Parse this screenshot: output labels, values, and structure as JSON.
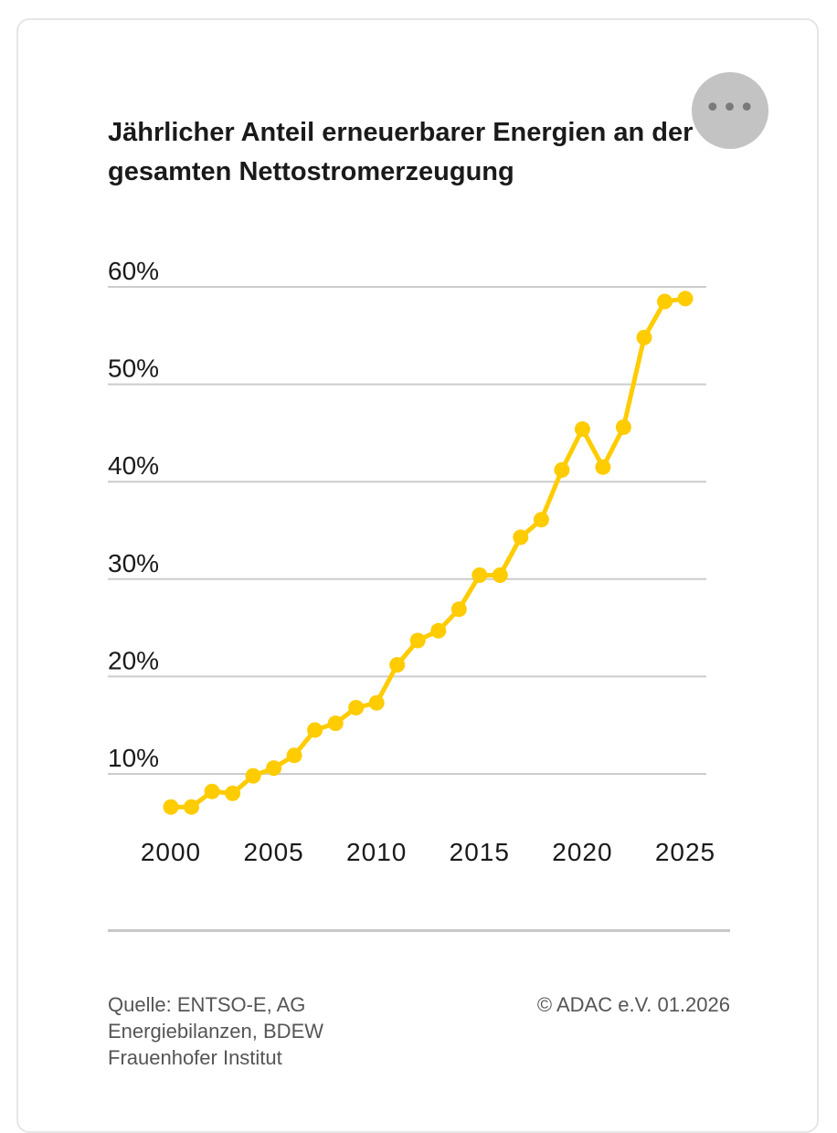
{
  "title": "Jährlicher Anteil erneuerbarer Energien an der gesamten Nettostromerzeugung",
  "menu": {
    "icon": "more-horizontal-icon",
    "glyph": "•••"
  },
  "source": "Quelle: ENTSO-E, AG Energiebilanzen, BDEW Frauenhofer Institut",
  "copyright": "© ADAC e.V. 01.2026",
  "colors": {
    "line": "#FFCC00",
    "grid": "#cccccc",
    "divider": "#c8c8c8"
  },
  "chart_data": {
    "type": "line",
    "title": "Jährlicher Anteil erneuerbarer Energien an der gesamten Nettostromerzeugung",
    "xlabel": "",
    "ylabel": "",
    "x": [
      2000,
      2001,
      2002,
      2003,
      2004,
      2005,
      2006,
      2007,
      2008,
      2009,
      2010,
      2011,
      2012,
      2013,
      2014,
      2015,
      2016,
      2017,
      2018,
      2019,
      2020,
      2021,
      2022,
      2023,
      2024,
      2025
    ],
    "values": [
      6.6,
      6.6,
      8.2,
      8.0,
      9.8,
      10.6,
      11.9,
      14.5,
      15.2,
      16.8,
      17.3,
      21.2,
      23.7,
      24.7,
      26.9,
      30.4,
      30.4,
      34.3,
      36.1,
      41.2,
      45.4,
      41.5,
      45.6,
      54.8,
      58.5,
      58.8
    ],
    "yticks": [
      "10%",
      "20%",
      "30%",
      "40%",
      "50%",
      "60%"
    ],
    "ytick_values": [
      10,
      20,
      30,
      40,
      50,
      60
    ],
    "xticks": [
      "2000",
      "2005",
      "2010",
      "2015",
      "2020",
      "2025"
    ],
    "xtick_values": [
      2000,
      2005,
      2010,
      2015,
      2020,
      2025
    ],
    "ylim": [
      5,
      60
    ],
    "xlim": [
      2000,
      2025
    ],
    "grid": true,
    "legend": "none"
  }
}
